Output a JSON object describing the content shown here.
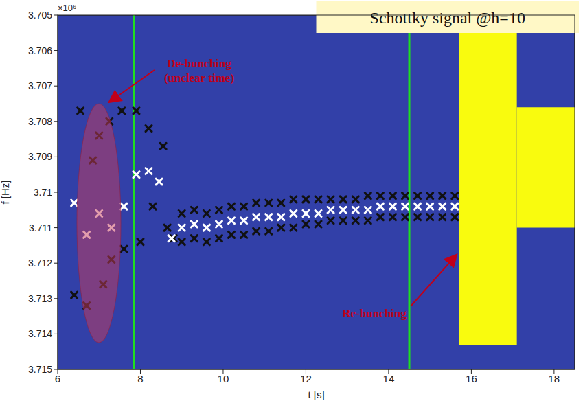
{
  "chart_data": {
    "type": "scatter",
    "title": "Schottky signal @h=10",
    "x_label": "t [s]",
    "y_label": "f [Hz]",
    "y_offset_label": "×10⁶",
    "xlim": [
      6,
      18.5
    ],
    "xticks": [
      6,
      8,
      10,
      12,
      14,
      16,
      18
    ],
    "ylim": [
      3.715,
      3.705
    ],
    "yticks": [
      3.705,
      3.706,
      3.707,
      3.708,
      3.709,
      3.71,
      3.711,
      3.712,
      3.713,
      3.714,
      3.715
    ],
    "grid": false,
    "background": "#3240a8",
    "annotations": [
      {
        "text": "De-bunching",
        "subtext": "(unclear time)",
        "color": "#c0001a"
      },
      {
        "text": "Re-bunching",
        "color": "#c0001a"
      }
    ],
    "vertical_lines": {
      "values": [
        7.85,
        14.5
      ],
      "color": "#1fe01f"
    },
    "bright_regions": [
      {
        "t": [
          15.7,
          17.1
        ],
        "f": [
          3.7052,
          3.7143
        ],
        "color": "#f9fb0e"
      },
      {
        "t": [
          17.1,
          18.5
        ],
        "f": [
          3.7076,
          3.711
        ],
        "color": "#f9fb0e"
      }
    ],
    "series": [
      {
        "color": "#111111",
        "marker": "x",
        "x": [
          6.4,
          6.55,
          6.7,
          6.85,
          7.0,
          7.1,
          7.25,
          7.3,
          7.55,
          7.6,
          7.9,
          8.0,
          8.2,
          8.3,
          8.55,
          8.65,
          8.8,
          9.0,
          9.3,
          9.6,
          9.9,
          10.2,
          10.5,
          10.8,
          11.1,
          11.4,
          11.7,
          12.0,
          12.3,
          12.6,
          12.9,
          13.2,
          13.5,
          13.8,
          14.1,
          14.4,
          14.7,
          15.0,
          15.3,
          15.6,
          9.0,
          9.3,
          9.6,
          9.9,
          10.2,
          10.5,
          10.8,
          11.1,
          11.4,
          11.7,
          12.0,
          12.3,
          12.6,
          12.9,
          13.2,
          13.5,
          13.8,
          14.1,
          14.4,
          14.7,
          15.0,
          15.3,
          15.6
        ],
        "values": [
          3.7129,
          3.7077,
          3.7132,
          3.7091,
          3.7084,
          3.7126,
          3.708,
          3.7119,
          3.7077,
          3.7116,
          3.7077,
          3.7114,
          3.7082,
          3.7104,
          3.7087,
          3.711,
          3.7113,
          3.7106,
          3.7105,
          3.7106,
          3.7105,
          3.7104,
          3.7104,
          3.7103,
          3.7103,
          3.7103,
          3.7102,
          3.7102,
          3.7102,
          3.7102,
          3.7102,
          3.7102,
          3.7101,
          3.7101,
          3.7101,
          3.7101,
          3.7101,
          3.7101,
          3.7101,
          3.7101,
          3.7114,
          3.7113,
          3.7114,
          3.7113,
          3.7112,
          3.7112,
          3.7111,
          3.7111,
          3.711,
          3.711,
          3.7109,
          3.7109,
          3.7108,
          3.7108,
          3.7108,
          3.7108,
          3.7107,
          3.7107,
          3.7107,
          3.7107,
          3.7107,
          3.7107,
          3.7107
        ]
      },
      {
        "color": "#ffffff",
        "marker": "x",
        "x": [
          6.4,
          6.7,
          7.0,
          7.3,
          7.6,
          7.9,
          8.2,
          8.45,
          8.75,
          9.0,
          9.3,
          9.6,
          9.9,
          10.2,
          10.5,
          10.8,
          11.1,
          11.4,
          11.7,
          12.0,
          12.3,
          12.6,
          12.9,
          13.2,
          13.5,
          13.8,
          14.1,
          14.4,
          14.7,
          15.0,
          15.3,
          15.6
        ],
        "values": [
          3.7103,
          3.7112,
          3.7106,
          3.711,
          3.7104,
          3.7095,
          3.7094,
          3.7097,
          3.7113,
          3.711,
          3.7109,
          3.711,
          3.7109,
          3.7108,
          3.7108,
          3.7107,
          3.7107,
          3.7107,
          3.7106,
          3.7106,
          3.7106,
          3.7105,
          3.7105,
          3.7105,
          3.7105,
          3.7104,
          3.7104,
          3.7104,
          3.7104,
          3.7104,
          3.7104,
          3.7104
        ]
      }
    ]
  }
}
